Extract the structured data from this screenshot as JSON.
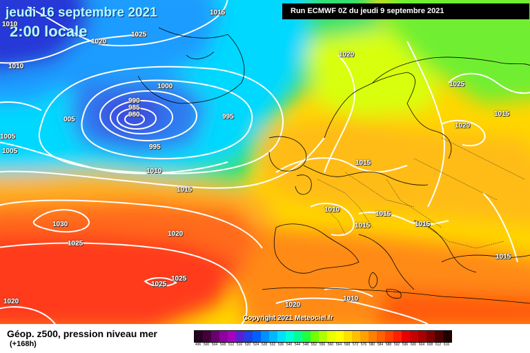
{
  "header": {
    "date": "jeudi 16 septembre 2021",
    "time": "2:00 locale",
    "run": "Run ECMWF 0Z du jeudi 9 septembre 2021"
  },
  "copyright": "Copyright 2021 Meteociel.fr",
  "footer": {
    "field_title": "Géop. z500, pression niveau mer",
    "lead_time": "(+168h)"
  },
  "scale": {
    "labels": [
      "496",
      "500",
      "504",
      "508",
      "512",
      "516",
      "520",
      "524",
      "528",
      "532",
      "536",
      "540",
      "544",
      "548",
      "552",
      "556",
      "560",
      "564",
      "568",
      "572",
      "576",
      "580",
      "584",
      "588",
      "592",
      "596",
      "600",
      "604",
      "608",
      "612",
      "616"
    ],
    "colors": [
      "#2a0022",
      "#43003c",
      "#6a0070",
      "#8e00a0",
      "#a800c0",
      "#5a20d0",
      "#2040e8",
      "#0060ff",
      "#0090ff",
      "#00b8ff",
      "#00e0ff",
      "#00ffd8",
      "#00ff9a",
      "#20ff40",
      "#70ff00",
      "#b0ff00",
      "#e8ff00",
      "#ffff00",
      "#ffe000",
      "#ffc000",
      "#ffa000",
      "#ff8000",
      "#ff6000",
      "#ff4000",
      "#ff2000",
      "#e80000",
      "#c80000",
      "#a80000",
      "#800000",
      "#500000",
      "#200000"
    ]
  },
  "isobar_labels": [
    "1015",
    "1010",
    "1025",
    "1020",
    "1010",
    "990",
    "985",
    "980",
    "1000",
    "995",
    "005",
    "1005",
    "995",
    "1005",
    "1010",
    "1015",
    "1030",
    "1025",
    "1020",
    "1025",
    "1025",
    "1020",
    "1020",
    "1025",
    "1015",
    "1020",
    "1015",
    "1010",
    "1015",
    "1015",
    "1015",
    "1010",
    "1020",
    "1015"
  ]
}
